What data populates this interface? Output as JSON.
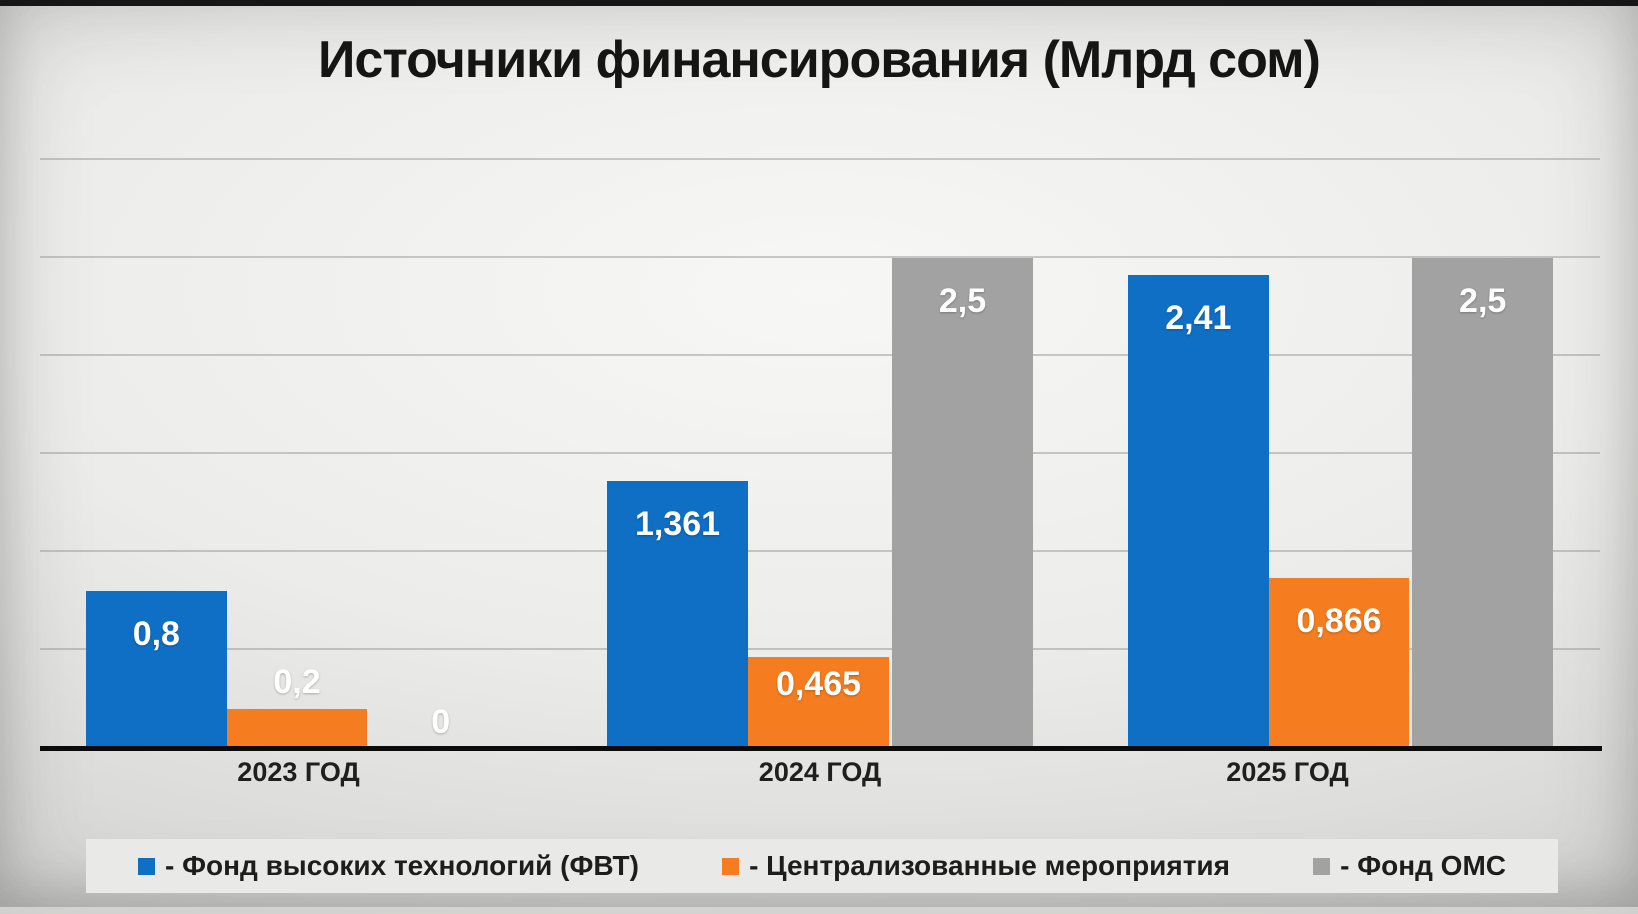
{
  "title": "Источники финансирования (Млрд сом)",
  "colors": {
    "blue": "#0F6FC5",
    "orange": "#F57D1F",
    "gray": "#A2A2A2",
    "axis": "#0B0B0B",
    "text_dark": "#1D1D1D",
    "value_label": "#FFFFFF",
    "legend_background": "#E9E9E7"
  },
  "chart_data": {
    "type": "bar",
    "title": "Источники финансирования (Млрд сом)",
    "xlabel": "",
    "ylabel": "",
    "categories": [
      "2023 ГОД",
      "2024 ГОД",
      "2025 ГОД"
    ],
    "series": [
      {
        "name": "Фонд высоких технологий (ФВТ)",
        "legend_label": "- Фонд высоких технологий (ФВТ)",
        "color_key": "blue",
        "values": [
          0.8,
          1.361,
          2.41
        ],
        "labels": [
          "0,8",
          "1,361",
          "2,41"
        ]
      },
      {
        "name": "Централизованные мероприятия",
        "legend_label": "- Централизованные мероприятия",
        "color_key": "orange",
        "values": [
          0.2,
          0.465,
          0.866
        ],
        "labels": [
          "0,2",
          "0,465",
          "0,866"
        ]
      },
      {
        "name": "Фонд ОМС",
        "legend_label": "- Фонд ОМС",
        "color_key": "gray",
        "values": [
          0,
          2.5,
          2.5
        ],
        "labels": [
          "0",
          "2,5",
          "2,5"
        ]
      }
    ],
    "ylim": [
      0,
      3.05
    ],
    "gridline_step": 0.5,
    "grid": "horizontal-only",
    "y_axis_ticks_visible": false,
    "legend_position": "bottom"
  }
}
